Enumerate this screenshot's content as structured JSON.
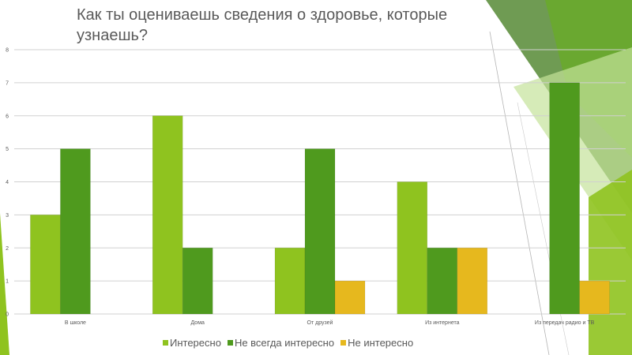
{
  "slide": {
    "title": "Как ты оцениваешь сведения о здоровье, которые узнаешь?"
  },
  "colors": {
    "background": "#ffffff",
    "accent_light": "#8fc31f",
    "accent_dark": "#4f9a1e",
    "deco_dark": "#3f7a1a",
    "deco_mid": "#6aaa2a",
    "deco_light": "#c5e29a",
    "yellow": "#e6b81e",
    "text": "#595959",
    "grid": "#d0d0d0"
  },
  "chart_data": {
    "type": "bar",
    "title": "Как ты оцениваешь сведения о здоровье, которые узнаешь?",
    "categories": [
      "В школе",
      "Дома",
      "От друзей",
      "Из интернета",
      "Из передач радио и ТВ"
    ],
    "series": [
      {
        "name": "Интересно",
        "color": "#8fc31f",
        "values": [
          3,
          6,
          2,
          4,
          null
        ]
      },
      {
        "name": "Не всегда интересно",
        "color": "#4f9a1e",
        "values": [
          5,
          2,
          5,
          2,
          7
        ]
      },
      {
        "name": "Не интересно",
        "color": "#e6b81e",
        "values": [
          null,
          null,
          1,
          2,
          1
        ]
      }
    ],
    "ylim": [
      0,
      8
    ],
    "yticks": [
      "0",
      "1",
      "2",
      "3",
      "4",
      "5",
      "6",
      "7",
      "8"
    ],
    "grid": true,
    "legend_position": "bottom"
  }
}
